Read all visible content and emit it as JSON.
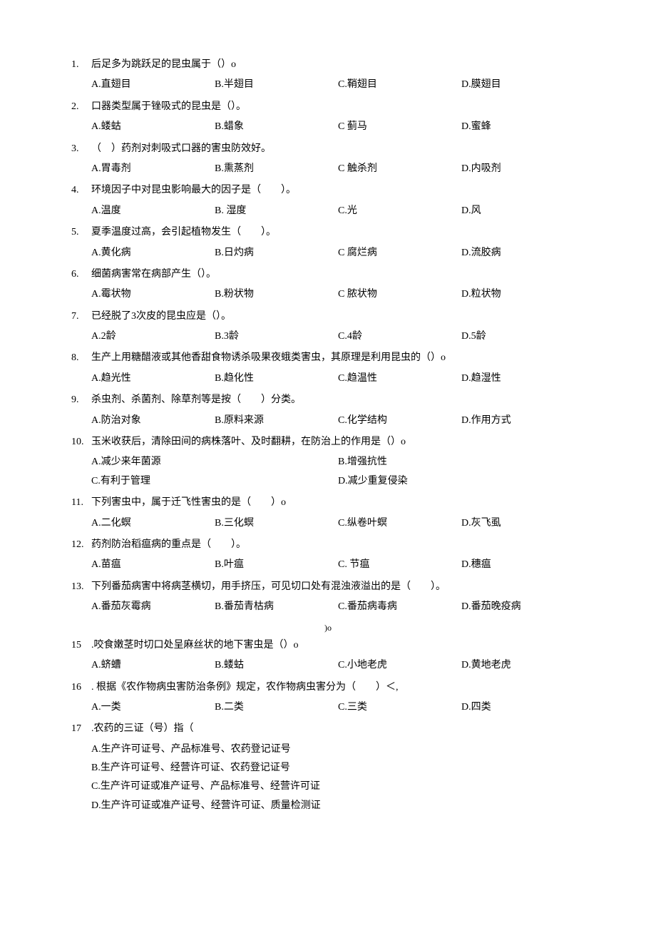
{
  "questions": [
    {
      "num": "1.",
      "text": "后足多为跳跃足的昆虫属于（）o",
      "layout": "4col",
      "opts": [
        "A.直翅目",
        "B.半翅目",
        "C.鞘翅目",
        "D.膜翅目"
      ]
    },
    {
      "num": "2.",
      "text": "口器类型属于锉吸式的昆虫是（）。",
      "layout": "4col",
      "opts": [
        "A.蝼蛄",
        "B.蜡象",
        "C 蓟马",
        "D.蜜蜂"
      ]
    },
    {
      "num": "3.",
      "text": "（　）药剂对刺吸式口器的害虫防效好。",
      "layout": "4col",
      "opts": [
        "A.胃毒剂",
        "B.熏蒸剂",
        "C 触杀剂",
        "D.内吸剂"
      ]
    },
    {
      "num": "4.",
      "text": "环境因子中对昆虫影响最大的因子是（　　）。",
      "layout": "4col",
      "opts": [
        "A.温度",
        "B. 湿度",
        "C.光",
        "D.风"
      ]
    },
    {
      "num": "5.",
      "text": "夏季温度过高，会引起植物发生（　　）。",
      "layout": "4col",
      "opts": [
        "A.黄化病",
        "B.日灼病",
        "C 腐烂病",
        "D.流胶病"
      ]
    },
    {
      "num": "6.",
      "text": "细菌病害常在病部产生（）。",
      "layout": "4col",
      "opts": [
        "A.霉状物",
        "B.粉状物",
        "C 脓状物",
        "D.粒状物"
      ]
    },
    {
      "num": "7.",
      "text": "已经脱了3次皮的昆虫应是（）。",
      "layout": "4col",
      "opts": [
        "A.2龄",
        "B.3龄",
        "C.4龄",
        "D.5龄"
      ]
    },
    {
      "num": "8.",
      "text": "生产上用糖醋液或其他香甜食物诱杀吸果夜蛾类害虫，其原理是利用昆虫的（）o",
      "layout": "4col",
      "opts": [
        "A.趋光性",
        "B.趋化性",
        "C.趋温性",
        "D.趋湿性"
      ]
    },
    {
      "num": "9.",
      "text": "杀虫剂、杀菌剂、除草剂等是按（　　）分类。",
      "layout": "4col",
      "opts": [
        "A.防治对象",
        "B.原料来源",
        "C.化学结构",
        "D.作用方式"
      ]
    },
    {
      "num": "10.",
      "text": "玉米收获后，清除田间的病株落叶、及时翻耕，在防治上的作用是（）o",
      "layout": "2col",
      "opts": [
        "A.减少来年菌源",
        "B.增强抗性",
        "C.有利于管理",
        "D.减少重复侵染"
      ]
    },
    {
      "num": "11.",
      "text": "下列害虫中，属于迁飞性害虫的是（　　）o",
      "layout": "4col",
      "opts": [
        "A.二化螟",
        "B.三化螟",
        "C.纵卷叶螟",
        "D.灰飞虱"
      ]
    },
    {
      "num": "12.",
      "text": "药剂防治稻瘟病的重点是（　　）。",
      "layout": "4col",
      "opts": [
        "A.苗瘟",
        "B.叶瘟",
        "C. 节瘟",
        "D.穗瘟"
      ]
    },
    {
      "num": "13.",
      "text": "下列番茄病害中将病茎横切，用手挤压，可见切口处有混浊液溢出的是（　　）。",
      "layout": "4col",
      "opts": [
        "A.番茄灰霉病",
        "B.番茄青枯病",
        "C.番茄病毒病",
        "D.番茄晚疫病"
      ]
    }
  ],
  "special_line": ")o",
  "questions2": [
    {
      "num": "15",
      "text": ".咬食嫩茎时切口处呈麻丝状的地下害虫是（）o",
      "layout": "4col",
      "opts": [
        "A.蛴螬",
        "B.蝼蛄",
        "C.小地老虎",
        "D.黄地老虎"
      ]
    },
    {
      "num": "16",
      "text": ". 根据《农作物病虫害防治条例》规定，农作物病虫害分为（　　）＜,",
      "layout": "4col",
      "opts": [
        "A.一类",
        "B.二类",
        "C.三类",
        "D.四类"
      ]
    },
    {
      "num": "17",
      "text": ".农药的三证（号）指（",
      "layout": "1col",
      "opts": [
        "A.生产许可证号、产品标准号、农药登记证号",
        "B.生产许可证号、经营许可证、农药登记证号",
        "C.生产许可证或准产证号、产品标准号、经营许可证",
        "D.生产许可证或准产证号、经营许可证、质量检测证"
      ]
    }
  ]
}
